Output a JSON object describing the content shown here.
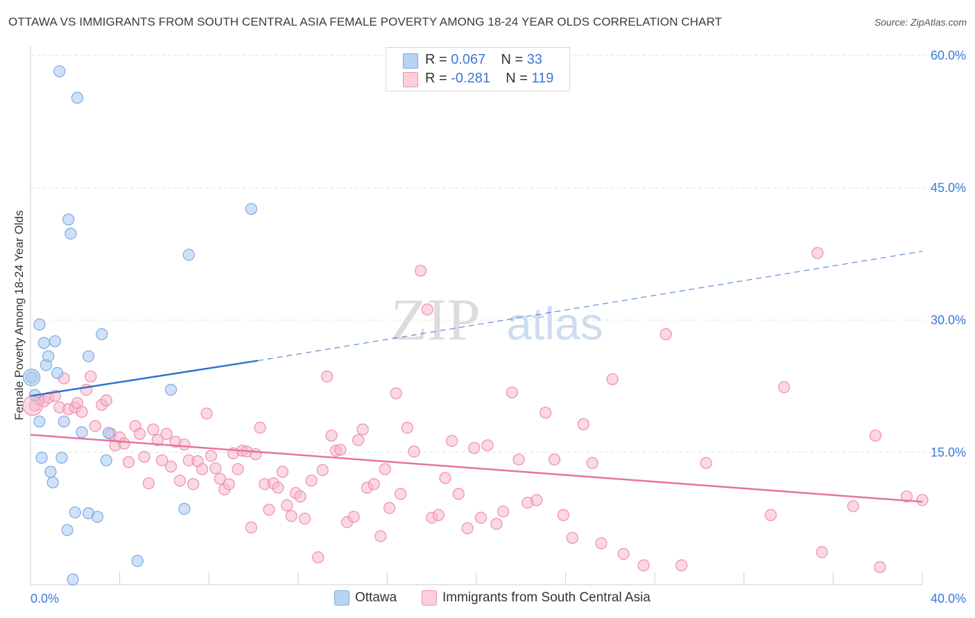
{
  "title": "OTTAWA VS IMMIGRANTS FROM SOUTH CENTRAL ASIA FEMALE POVERTY AMONG 18-24 YEAR OLDS CORRELATION CHART",
  "source": "Source: ZipAtlas.com",
  "watermark": {
    "zip": "ZIP",
    "atlas": "atlas"
  },
  "legend": {
    "rows": [
      {
        "r_label": "R = ",
        "r_value": "0.067",
        "n_label": "N = ",
        "n_value": "33",
        "color": "#a9c8f0"
      },
      {
        "r_label": "R = ",
        "r_value": "-0.281",
        "n_label": "N = ",
        "n_value": "119",
        "color": "#f7b8cb"
      }
    ]
  },
  "chart_data": {
    "type": "scatter",
    "title": "OTTAWA VS IMMIGRANTS FROM SOUTH CENTRAL ASIA FEMALE POVERTY AMONG 18-24 YEAR OLDS CORRELATION CHART",
    "xlabel": "",
    "ylabel": "Female Poverty Among 18-24 Year Olds",
    "xlim": [
      0,
      40
    ],
    "ylim": [
      0,
      60
    ],
    "x_tick_labels": [
      "0.0%",
      "40.0%"
    ],
    "y_tick_labels": [
      "15.0%",
      "30.0%",
      "45.0%",
      "60.0%"
    ],
    "y_ticks": [
      15,
      30,
      45,
      60
    ],
    "grid": true,
    "legend_position": "top-center",
    "series": [
      {
        "name": "Ottawa",
        "color": "#a9c8f0",
        "stroke": "#7aa8e2",
        "trend": {
          "x0": 0,
          "y0": 21.4,
          "x1": 10.2,
          "y1": 25.4,
          "dashed_to_x": 40,
          "dashed_to_y": 37.8,
          "color": "#2f6fd0"
        },
        "points": [
          [
            0.05,
            23.5
          ],
          [
            0.2,
            21.5
          ],
          [
            0.4,
            29.5
          ],
          [
            0.4,
            18.5
          ],
          [
            0.5,
            14.4
          ],
          [
            0.6,
            27.4
          ],
          [
            0.7,
            24.9
          ],
          [
            0.8,
            25.9
          ],
          [
            0.9,
            12.8
          ],
          [
            1.0,
            11.6
          ],
          [
            1.1,
            27.6
          ],
          [
            1.2,
            24.0
          ],
          [
            1.3,
            58.2
          ],
          [
            1.4,
            14.4
          ],
          [
            1.5,
            18.5
          ],
          [
            1.7,
            41.4
          ],
          [
            1.8,
            39.8
          ],
          [
            2.0,
            8.2
          ],
          [
            1.65,
            6.2
          ],
          [
            1.9,
            0.6
          ],
          [
            2.1,
            55.2
          ],
          [
            2.3,
            17.3
          ],
          [
            2.6,
            8.1
          ],
          [
            2.6,
            25.9
          ],
          [
            3.0,
            7.7
          ],
          [
            3.2,
            28.4
          ],
          [
            3.4,
            14.1
          ],
          [
            3.5,
            17.2
          ],
          [
            4.8,
            2.7
          ],
          [
            6.3,
            22.1
          ],
          [
            6.9,
            8.6
          ],
          [
            7.1,
            37.4
          ],
          [
            9.9,
            42.6
          ]
        ]
      },
      {
        "name": "Immigrants from South Central Asia",
        "color": "#f7b8cb",
        "stroke": "#ee8eab",
        "trend": {
          "x0": 0,
          "y0": 17.0,
          "x1": 40,
          "y1": 9.4,
          "color": "#e8739a"
        },
        "points": [
          [
            0.2,
            20.3
          ],
          [
            0.4,
            21.0
          ],
          [
            0.6,
            20.8
          ],
          [
            0.8,
            21.2
          ],
          [
            1.1,
            21.4
          ],
          [
            1.3,
            20.1
          ],
          [
            1.5,
            23.4
          ],
          [
            1.7,
            19.9
          ],
          [
            2.0,
            20.1
          ],
          [
            2.1,
            20.6
          ],
          [
            2.3,
            19.6
          ],
          [
            2.5,
            22.1
          ],
          [
            2.7,
            23.6
          ],
          [
            2.9,
            18.0
          ],
          [
            3.2,
            20.4
          ],
          [
            3.4,
            20.9
          ],
          [
            3.6,
            17.1
          ],
          [
            3.8,
            15.8
          ],
          [
            4.0,
            16.7
          ],
          [
            4.2,
            16.0
          ],
          [
            4.4,
            13.9
          ],
          [
            4.7,
            18.0
          ],
          [
            4.9,
            17.1
          ],
          [
            5.1,
            14.5
          ],
          [
            5.3,
            11.5
          ],
          [
            5.5,
            17.6
          ],
          [
            5.7,
            16.4
          ],
          [
            5.9,
            14.1
          ],
          [
            6.1,
            17.1
          ],
          [
            6.3,
            13.4
          ],
          [
            6.5,
            16.2
          ],
          [
            6.7,
            11.8
          ],
          [
            6.9,
            15.9
          ],
          [
            7.1,
            14.1
          ],
          [
            7.3,
            11.4
          ],
          [
            7.5,
            14.0
          ],
          [
            7.7,
            13.1
          ],
          [
            7.9,
            19.4
          ],
          [
            8.1,
            14.6
          ],
          [
            8.3,
            13.2
          ],
          [
            8.5,
            12.0
          ],
          [
            8.7,
            10.8
          ],
          [
            8.9,
            11.4
          ],
          [
            9.1,
            14.9
          ],
          [
            9.3,
            13.1
          ],
          [
            9.5,
            15.2
          ],
          [
            9.7,
            15.1
          ],
          [
            9.9,
            6.5
          ],
          [
            10.1,
            14.8
          ],
          [
            10.3,
            17.8
          ],
          [
            10.5,
            11.4
          ],
          [
            10.7,
            8.5
          ],
          [
            10.9,
            11.5
          ],
          [
            11.1,
            11.0
          ],
          [
            11.3,
            12.8
          ],
          [
            11.5,
            9.0
          ],
          [
            11.7,
            7.8
          ],
          [
            11.9,
            10.4
          ],
          [
            12.1,
            10.0
          ],
          [
            12.3,
            7.5
          ],
          [
            12.6,
            11.8
          ],
          [
            12.9,
            3.1
          ],
          [
            13.1,
            13.0
          ],
          [
            13.3,
            23.6
          ],
          [
            13.5,
            16.9
          ],
          [
            13.7,
            15.2
          ],
          [
            13.9,
            15.3
          ],
          [
            14.2,
            7.1
          ],
          [
            14.5,
            7.7
          ],
          [
            14.7,
            16.4
          ],
          [
            14.9,
            17.6
          ],
          [
            15.1,
            11.0
          ],
          [
            15.4,
            11.4
          ],
          [
            15.7,
            5.5
          ],
          [
            15.9,
            13.1
          ],
          [
            16.1,
            8.7
          ],
          [
            16.4,
            21.7
          ],
          [
            16.6,
            10.3
          ],
          [
            16.9,
            17.8
          ],
          [
            17.2,
            15.1
          ],
          [
            17.5,
            35.6
          ],
          [
            17.8,
            31.2
          ],
          [
            18.0,
            7.6
          ],
          [
            18.3,
            7.9
          ],
          [
            18.6,
            12.1
          ],
          [
            18.9,
            16.3
          ],
          [
            19.2,
            10.3
          ],
          [
            19.6,
            6.4
          ],
          [
            19.9,
            15.5
          ],
          [
            20.2,
            7.6
          ],
          [
            20.5,
            15.8
          ],
          [
            20.9,
            6.9
          ],
          [
            21.2,
            8.3
          ],
          [
            21.6,
            21.8
          ],
          [
            21.9,
            14.2
          ],
          [
            22.3,
            9.3
          ],
          [
            22.7,
            9.6
          ],
          [
            23.1,
            19.5
          ],
          [
            23.5,
            14.2
          ],
          [
            23.9,
            7.9
          ],
          [
            24.3,
            5.3
          ],
          [
            24.8,
            18.2
          ],
          [
            25.2,
            13.8
          ],
          [
            25.6,
            4.7
          ],
          [
            26.1,
            23.3
          ],
          [
            26.6,
            3.5
          ],
          [
            27.5,
            2.2
          ],
          [
            28.5,
            28.4
          ],
          [
            29.2,
            2.2
          ],
          [
            30.3,
            13.8
          ],
          [
            33.2,
            7.9
          ],
          [
            33.8,
            22.4
          ],
          [
            35.3,
            37.6
          ],
          [
            35.5,
            3.7
          ],
          [
            36.9,
            8.9
          ],
          [
            37.9,
            16.9
          ],
          [
            38.1,
            2.0
          ],
          [
            39.3,
            10.0
          ],
          [
            40.0,
            9.6
          ]
        ]
      }
    ]
  },
  "bottom_legend": [
    {
      "label": "Ottawa",
      "color": "#a9c8f0"
    },
    {
      "label": "Immigrants from South Central Asia",
      "color": "#f7b8cb"
    }
  ]
}
